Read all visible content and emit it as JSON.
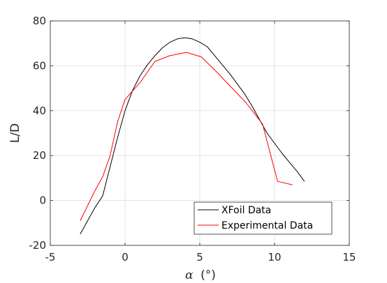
{
  "chart_data": {
    "type": "line",
    "title": "",
    "xlabel_symbol": "α",
    "xlabel_unit": "(°)",
    "ylabel": "L/D",
    "xlim": [
      -5,
      15
    ],
    "ylim": [
      -20,
      80
    ],
    "xticks": [
      -5,
      0,
      5,
      10,
      15
    ],
    "yticks": [
      -20,
      0,
      20,
      40,
      60,
      80
    ],
    "xtick_labels": [
      "-5",
      "0",
      "5",
      "10",
      "15"
    ],
    "ytick_labels": [
      "-20",
      "0",
      "20",
      "40",
      "60",
      "80"
    ],
    "grid": true,
    "legend_position": "bottom-right",
    "series": [
      {
        "name": "XFoil Data",
        "color": "#000000",
        "x": [
          -3.0,
          -2.5,
          -2.0,
          -1.5,
          -1.0,
          -0.5,
          0.0,
          0.5,
          1.0,
          1.5,
          2.0,
          2.5,
          3.0,
          3.5,
          4.0,
          4.5,
          5.0,
          5.5,
          6.0,
          6.5,
          7.0,
          7.5,
          8.0,
          8.5,
          9.0,
          9.5,
          10.0,
          10.5,
          11.0,
          11.5,
          12.0
        ],
        "y": [
          -15.0,
          -9.0,
          -3.0,
          2.0,
          15.0,
          28.0,
          40.0,
          49.0,
          55.5,
          60.5,
          64.5,
          68.0,
          70.5,
          72.0,
          72.5,
          72.0,
          70.5,
          68.5,
          64.5,
          60.5,
          56.5,
          52.0,
          47.5,
          42.0,
          36.0,
          30.0,
          25.5,
          21.0,
          17.0,
          13.0,
          8.5
        ]
      },
      {
        "name": "Experimental Data",
        "color": "#ff0000",
        "x": [
          -3.0,
          -2.0,
          -1.5,
          -1.0,
          -0.5,
          0.0,
          1.0,
          2.0,
          3.0,
          4.1,
          5.1,
          6.1,
          7.1,
          8.1,
          9.2,
          10.2,
          11.2
        ],
        "y": [
          -9.0,
          4.5,
          10.5,
          20.0,
          35.0,
          45.0,
          52.5,
          62.0,
          64.5,
          66.0,
          64.0,
          57.5,
          50.5,
          43.5,
          34.0,
          8.5,
          7.0
        ]
      }
    ]
  }
}
